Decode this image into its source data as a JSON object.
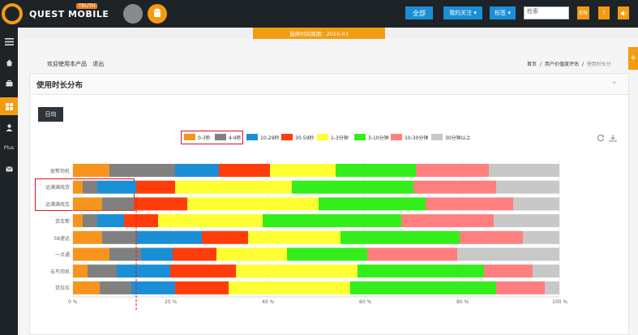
{
  "header": {
    "logo_text": "QUEST MOBILE",
    "logo_badge": "TRUTH",
    "apple_icon": "apple-icon",
    "android_icon": "android-icon",
    "all_label": "全部",
    "my_follow_label": "我的关注 ▾",
    "tag_label": "标签 ▾",
    "search_placeholder": "检索",
    "lang_label": "EN",
    "help_label": "?",
    "sound_icon": "speaker-icon"
  },
  "period_label": "选择时间周期：2016-03",
  "nav": {
    "icons": [
      "menu-icon",
      "home-icon",
      "briefcase-icon",
      "grid-icon",
      "user-icon",
      "mail-icon"
    ],
    "plus_label": "Plus"
  },
  "welcome": {
    "text": "欢迎使用本产品",
    "logout": "退出"
  },
  "breadcrumb": {
    "home": "首页",
    "section": "用户价值度评估",
    "current": "使用时长分"
  },
  "right_tab_label": "+",
  "panel": {
    "title": "使用时长分布",
    "chevron": "⌄"
  },
  "day_button": "日均",
  "colors": {
    "0-3s": "#f7941d",
    "4-9s": "#808080",
    "10-29s": "#1a8fd6",
    "30-59s": "#ff3d0a",
    "1-3m": "#ffff33",
    "3-10m": "#33ee1a",
    "10-30m": "#ff7f7f",
    "30m+": "#c8c8c8",
    "highlight": "#e0121e"
  },
  "chart_data": {
    "type": "bar",
    "orientation": "horizontal-stacked-100",
    "categories": [
      "斑帮司机",
      "运满满找货",
      "运满满找车",
      "货车帮",
      "58速运",
      "一点通",
      "云鸟司机",
      "货拉拉"
    ],
    "series": [
      {
        "name": "0-3秒",
        "values": [
          7.5,
          2,
          6,
          2,
          6,
          7.5,
          3,
          5.5
        ]
      },
      {
        "name": "4-9秒",
        "values": [
          13.5,
          3,
          6.5,
          3,
          7,
          6.5,
          6,
          6.5
        ]
      },
      {
        "name": "10-29秒",
        "values": [
          9,
          8,
          0,
          5.5,
          13.5,
          6.5,
          11,
          9
        ]
      },
      {
        "name": "30-59秒",
        "values": [
          10.5,
          8,
          11,
          7,
          9.5,
          9,
          13.5,
          11
        ]
      },
      {
        "name": "1-3分钟",
        "values": [
          13.5,
          24,
          27,
          21.5,
          19,
          14.5,
          25,
          25
        ]
      },
      {
        "name": "3-10分钟",
        "values": [
          16.5,
          25,
          22,
          28.5,
          24.5,
          16.5,
          26,
          30
        ]
      },
      {
        "name": "10-30分钟",
        "values": [
          15,
          17,
          18,
          19,
          13,
          18.5,
          10,
          10
        ]
      },
      {
        "name": "30分钟以上",
        "values": [
          14.5,
          13,
          9.5,
          13.5,
          7.5,
          21,
          5.5,
          3
        ]
      }
    ],
    "xlim": [
      0,
      100
    ],
    "xticks": [
      "0 %",
      "20 %",
      "40 %",
      "60 %",
      "80 %",
      "100 %"
    ],
    "reference_line_x": 13,
    "legend_position": "top"
  }
}
